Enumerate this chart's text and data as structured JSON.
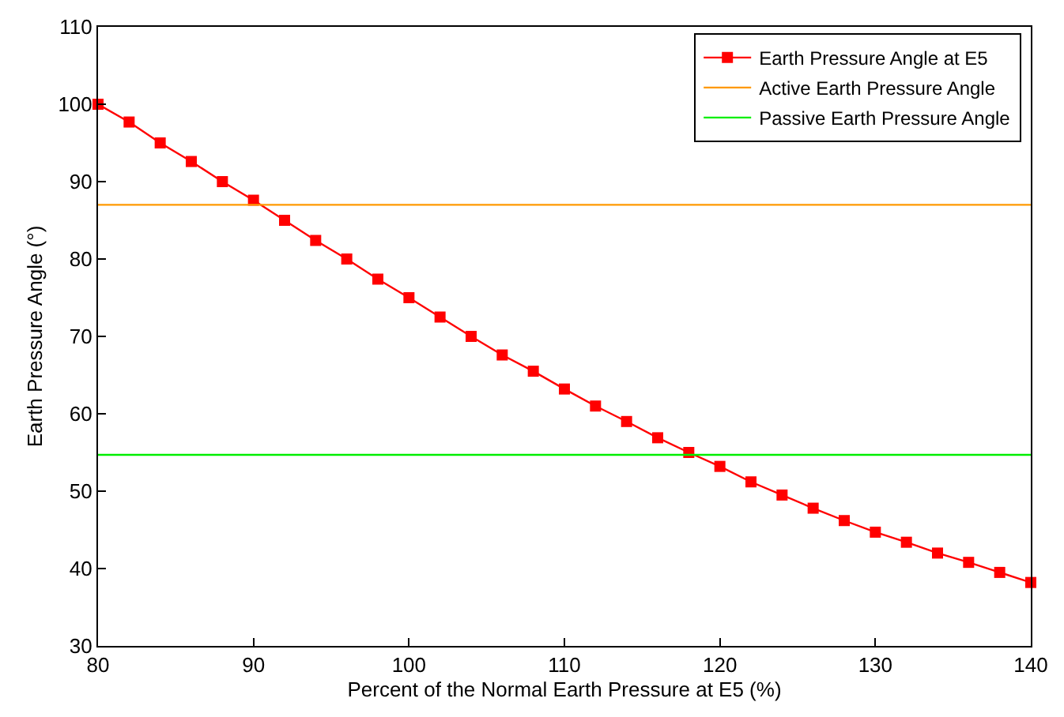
{
  "chart_data": {
    "type": "line",
    "xlabel": "Percent of the Normal Earth Pressure at E5 (%)",
    "ylabel": "Earth Pressure Angle (°)",
    "xlim": [
      80,
      140
    ],
    "xticks": [
      80,
      90,
      100,
      110,
      120,
      130,
      140
    ],
    "ylim": [
      30,
      110
    ],
    "yticks": [
      30,
      40,
      50,
      60,
      70,
      80,
      90,
      100,
      110
    ],
    "legend": "top right",
    "series": [
      {
        "name": "Earth Pressure Angle at E5",
        "color": "#ff0000",
        "marker": "square",
        "line_style": "solid",
        "x": [
          80,
          82,
          84,
          86,
          88,
          90,
          92,
          94,
          96,
          98,
          100,
          102,
          104,
          106,
          108,
          110,
          112,
          114,
          116,
          118,
          120,
          122,
          124,
          126,
          128,
          130,
          132,
          134,
          136,
          138,
          140
        ],
        "values": [
          100,
          97.7,
          95,
          92.6,
          90,
          87.6,
          85,
          82.4,
          80,
          77.4,
          75,
          72.5,
          70,
          67.6,
          65.5,
          63.2,
          61,
          59,
          56.9,
          55,
          53.2,
          51.2,
          49.5,
          47.8,
          46.2,
          44.7,
          43.4,
          42,
          40.8,
          39.5,
          38.2
        ]
      },
      {
        "name": "Active Earth Pressure Angle",
        "color": "#ff9900",
        "marker": "none",
        "line_style": "solid",
        "x": [
          80,
          140
        ],
        "values": [
          87,
          87
        ]
      },
      {
        "name": "Passive Earth Pressure Angle",
        "color": "#00ee00",
        "marker": "none",
        "line_style": "solid",
        "x": [
          80,
          140
        ],
        "values": [
          54.7,
          54.7
        ]
      }
    ]
  }
}
